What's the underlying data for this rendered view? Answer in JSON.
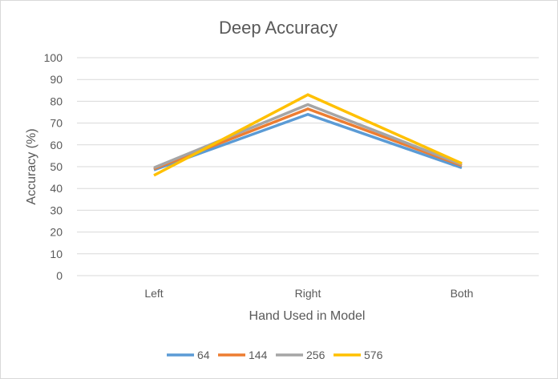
{
  "chart_data": {
    "type": "line",
    "title": "Deep Accuracy",
    "xlabel": "Hand Used in Model",
    "ylabel": "Accuracy (%)",
    "categories": [
      "Left",
      "Right",
      "Both"
    ],
    "ylim": [
      0,
      100
    ],
    "yticks": [
      0,
      10,
      20,
      30,
      40,
      50,
      60,
      70,
      80,
      90,
      100
    ],
    "grid": true,
    "legend_position": "bottom",
    "series": [
      {
        "name": "64",
        "values": [
          48.5,
          74,
          49.5
        ],
        "color": "#5b9bd5"
      },
      {
        "name": "144",
        "values": [
          49,
          76.5,
          50.5
        ],
        "color": "#ed7d31"
      },
      {
        "name": "256",
        "values": [
          49.5,
          78.5,
          51
        ],
        "color": "#a5a5a5"
      },
      {
        "name": "576",
        "values": [
          46,
          83,
          51.5
        ],
        "color": "#ffc000"
      }
    ]
  }
}
